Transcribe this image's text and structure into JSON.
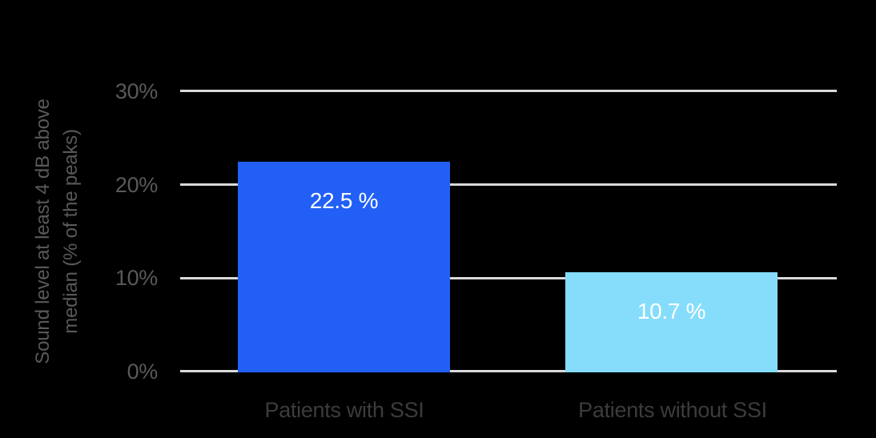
{
  "background_color": "#000000",
  "chart_data": {
    "type": "bar",
    "categories": [
      "Patients with SSI",
      "Patients without SSI"
    ],
    "values": [
      22.5,
      10.7
    ],
    "value_labels": [
      "22.5 %",
      "10.7 %"
    ],
    "ylabel": "Sound level at least 4 dB above median (% of the peaks)",
    "ylabel_lines": [
      "Sound level at least 4 dB above",
      "median (% of the peaks)"
    ],
    "y_ticks": [
      "30%",
      "20%",
      "10%",
      "0%"
    ],
    "ylim": [
      0,
      30
    ],
    "grid": true,
    "legend_position": "none",
    "bar_colors": [
      "#215FF6",
      "#85DDFB"
    ],
    "value_label_color": "#FFFFFF",
    "gridline_color": "#D9D9D9",
    "tick_color": "#595959",
    "axis_title_color": "#595959",
    "category_color": "#3C3C3C"
  }
}
